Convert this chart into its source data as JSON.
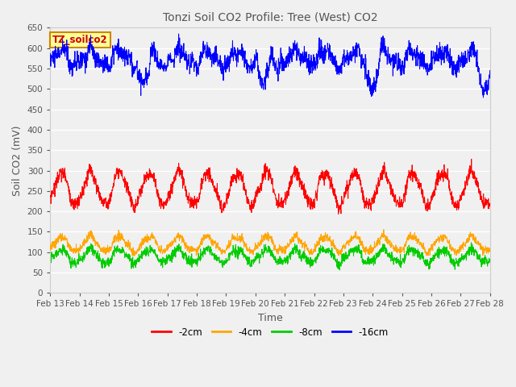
{
  "title": "Tonzi Soil CO2 Profile: Tree (West) CO2",
  "xlabel": "Time",
  "ylabel": "Soil CO2 (mV)",
  "ylim": [
    0,
    650
  ],
  "yticks": [
    0,
    50,
    100,
    150,
    200,
    250,
    300,
    350,
    400,
    450,
    500,
    550,
    600,
    650
  ],
  "x_labels": [
    "Feb 13",
    "Feb 14",
    "Feb 15",
    "Feb 16",
    "Feb 17",
    "Feb 18",
    "Feb 19",
    "Feb 20",
    "Feb 21",
    "Feb 22",
    "Feb 23",
    "Feb 24",
    "Feb 25",
    "Feb 26",
    "Feb 27",
    "Feb 28"
  ],
  "series": {
    "blue": {
      "label": "-16cm",
      "color": "#0000ff",
      "mean": 575,
      "amp": 18,
      "noise": 12,
      "daily_amp": 8
    },
    "red": {
      "label": "-2cm",
      "color": "#ff0000",
      "mean": 255,
      "amp": 40,
      "noise": 8,
      "daily_amp": 5
    },
    "orange": {
      "label": "-4cm",
      "color": "#ffa500",
      "mean": 120,
      "amp": 18,
      "noise": 5,
      "daily_amp": 3
    },
    "green": {
      "label": "-8cm",
      "color": "#00cc00",
      "mean": 90,
      "amp": 16,
      "noise": 6,
      "daily_amp": 3
    }
  },
  "legend_box_color": "#ffff99",
  "legend_box_edge": "#cc8800",
  "legend_box_text": "TZ_soilco2",
  "legend_box_text_color": "#cc0000",
  "background_color": "#f0f0f0",
  "plot_bg": "#f0f0f0",
  "grid_color": "#ffffff",
  "title_color": "#555555",
  "figsize": [
    6.4,
    4.8
  ],
  "dpi": 100
}
